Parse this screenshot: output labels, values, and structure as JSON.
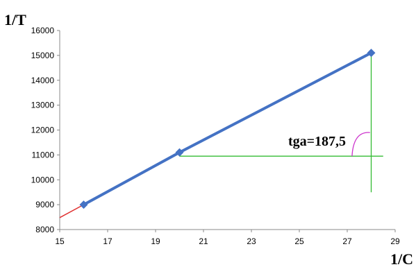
{
  "chart_data": {
    "type": "line",
    "ylabel": "1/T",
    "xlabel": "1/C",
    "xlim": [
      15,
      29
    ],
    "ylim": [
      8000,
      16000
    ],
    "x_ticks": [
      "15",
      "17",
      "19",
      "21",
      "23",
      "25",
      "27",
      "29"
    ],
    "y_ticks": [
      "8000",
      "9000",
      "10000",
      "11000",
      "12000",
      "13000",
      "14000",
      "15000",
      "16000"
    ],
    "grid": false,
    "legend": "none",
    "series": [
      {
        "x": [
          16,
          20,
          28
        ],
        "y": [
          9000,
          11100,
          15100
        ],
        "color": "#4472c4",
        "marker": "diamond"
      }
    ],
    "extrapolation": {
      "x": [
        15,
        16
      ],
      "y": [
        8480,
        9000
      ],
      "color": "#e03030"
    },
    "construction": {
      "color": "#33bb33",
      "horizontal": {
        "x": [
          20,
          28.5
        ],
        "y": 10950
      },
      "vertical": {
        "x": 28,
        "y": [
          9500,
          15100
        ]
      }
    },
    "angle_arc_color": "#cc33cc",
    "annotation": "tga=187,5"
  }
}
